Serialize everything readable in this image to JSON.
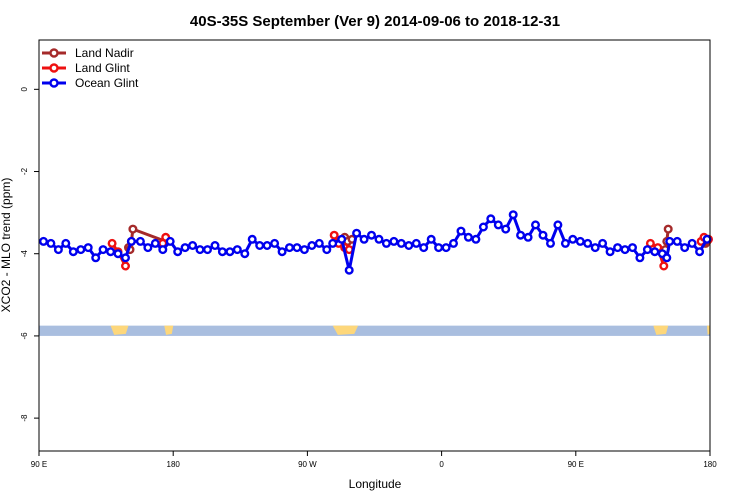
{
  "chart_data": {
    "type": "line",
    "title": "40S-35S September (Ver 9)   2014-09-06 to 2018-12-31",
    "xlabel": "Longitude",
    "ylabel": "XCO2 - MLO trend (ppm)",
    "xlim": [
      0,
      450
    ],
    "ylim": [
      -8.8,
      1.2
    ],
    "x_ticks": [
      {
        "value": 0,
        "label": "90 E"
      },
      {
        "value": 90,
        "label": "180"
      },
      {
        "value": 180,
        "label": "90 W"
      },
      {
        "value": 270,
        "label": "0"
      },
      {
        "value": 360,
        "label": "90 E"
      },
      {
        "value": 450,
        "label": "180"
      }
    ],
    "y_ticks": [
      0,
      -2,
      -4,
      -6,
      -8
    ],
    "grid": false,
    "legend_position": "top-left",
    "map_strip": {
      "y_range": [
        -6.0,
        -5.75
      ],
      "ocean_color": "#a9bedf",
      "land_color": "#fdd77b",
      "land_segments": [
        [
          48,
          60
        ],
        [
          84,
          90
        ],
        [
          197,
          214
        ],
        [
          412,
          422
        ],
        [
          448,
          450
        ]
      ]
    },
    "series": [
      {
        "name": "Land Nadir",
        "color": "#a52a2a",
        "segments": [
          [
            [
              60,
              -3.85
            ],
            [
              61,
              -3.9
            ],
            [
              62,
              -3.7
            ],
            [
              63,
              -3.4
            ],
            [
              85,
              -3.7
            ]
          ],
          [
            [
              205,
              -3.6
            ],
            [
              207,
              -3.7
            ],
            [
              210,
              -3.65
            ]
          ],
          [
            [
              420,
              -3.9
            ],
            [
              421,
              -3.7
            ],
            [
              422,
              -3.4
            ]
          ],
          [
            [
              447,
              -3.75
            ],
            [
              448,
              -3.7
            ]
          ]
        ]
      },
      {
        "name": "Land Glint",
        "color": "#ee1111",
        "segments": [
          [
            [
              49,
              -3.75
            ],
            [
              53,
              -3.95
            ],
            [
              58,
              -4.3
            ]
          ],
          [
            [
              83,
              -3.75
            ],
            [
              85,
              -3.6
            ]
          ],
          [
            [
              198,
              -3.55
            ],
            [
              201,
              -3.75
            ],
            [
              205,
              -3.85
            ],
            [
              208,
              -3.9
            ]
          ],
          [
            [
              410,
              -3.75
            ],
            [
              415,
              -3.85
            ],
            [
              419,
              -4.3
            ]
          ],
          [
            [
              444,
              -3.7
            ],
            [
              446,
              -3.6
            ],
            [
              449,
              -3.65
            ]
          ]
        ]
      },
      {
        "name": "Ocean Glint",
        "color": "#0000ee",
        "segments": [
          [
            [
              3,
              -3.7
            ],
            [
              8,
              -3.75
            ],
            [
              13,
              -3.9
            ],
            [
              18,
              -3.75
            ],
            [
              23,
              -3.95
            ],
            [
              28,
              -3.9
            ],
            [
              33,
              -3.85
            ],
            [
              38,
              -4.1
            ],
            [
              43,
              -3.9
            ],
            [
              48,
              -3.95
            ],
            [
              53,
              -4.0
            ],
            [
              58,
              -4.1
            ],
            [
              62,
              -3.7
            ],
            [
              68,
              -3.7
            ],
            [
              73,
              -3.85
            ],
            [
              78,
              -3.75
            ],
            [
              83,
              -3.9
            ],
            [
              88,
              -3.7
            ],
            [
              93,
              -3.95
            ],
            [
              98,
              -3.85
            ],
            [
              103,
              -3.8
            ],
            [
              108,
              -3.9
            ],
            [
              113,
              -3.9
            ],
            [
              118,
              -3.8
            ],
            [
              123,
              -3.95
            ],
            [
              128,
              -3.95
            ],
            [
              133,
              -3.9
            ],
            [
              138,
              -4.0
            ],
            [
              143,
              -3.65
            ],
            [
              148,
              -3.8
            ],
            [
              153,
              -3.8
            ],
            [
              158,
              -3.75
            ],
            [
              163,
              -3.95
            ],
            [
              168,
              -3.85
            ],
            [
              173,
              -3.85
            ],
            [
              178,
              -3.9
            ],
            [
              183,
              -3.8
            ],
            [
              188,
              -3.75
            ],
            [
              193,
              -3.9
            ],
            [
              197,
              -3.75
            ],
            [
              203,
              -3.65
            ],
            [
              208,
              -4.4
            ],
            [
              213,
              -3.5
            ],
            [
              218,
              -3.65
            ],
            [
              223,
              -3.55
            ],
            [
              228,
              -3.65
            ],
            [
              233,
              -3.75
            ],
            [
              238,
              -3.7
            ],
            [
              243,
              -3.75
            ],
            [
              248,
              -3.8
            ],
            [
              253,
              -3.75
            ],
            [
              258,
              -3.85
            ],
            [
              263,
              -3.65
            ],
            [
              268,
              -3.85
            ],
            [
              273,
              -3.85
            ],
            [
              278,
              -3.75
            ],
            [
              283,
              -3.45
            ],
            [
              288,
              -3.6
            ],
            [
              293,
              -3.65
            ],
            [
              298,
              -3.35
            ],
            [
              303,
              -3.15
            ],
            [
              308,
              -3.3
            ],
            [
              313,
              -3.4
            ],
            [
              318,
              -3.05
            ],
            [
              323,
              -3.55
            ],
            [
              328,
              -3.6
            ],
            [
              333,
              -3.3
            ],
            [
              338,
              -3.55
            ],
            [
              343,
              -3.75
            ],
            [
              348,
              -3.3
            ],
            [
              353,
              -3.75
            ],
            [
              358,
              -3.65
            ],
            [
              363,
              -3.7
            ],
            [
              368,
              -3.75
            ],
            [
              373,
              -3.85
            ],
            [
              378,
              -3.75
            ],
            [
              383,
              -3.95
            ],
            [
              388,
              -3.85
            ],
            [
              393,
              -3.9
            ],
            [
              398,
              -3.85
            ],
            [
              403,
              -4.1
            ],
            [
              408,
              -3.9
            ],
            [
              413,
              -3.95
            ],
            [
              418,
              -4.0
            ],
            [
              421,
              -4.1
            ],
            [
              423,
              -3.7
            ],
            [
              428,
              -3.7
            ],
            [
              433,
              -3.85
            ],
            [
              438,
              -3.75
            ],
            [
              443,
              -3.95
            ],
            [
              448,
              -3.65
            ]
          ]
        ]
      }
    ]
  }
}
